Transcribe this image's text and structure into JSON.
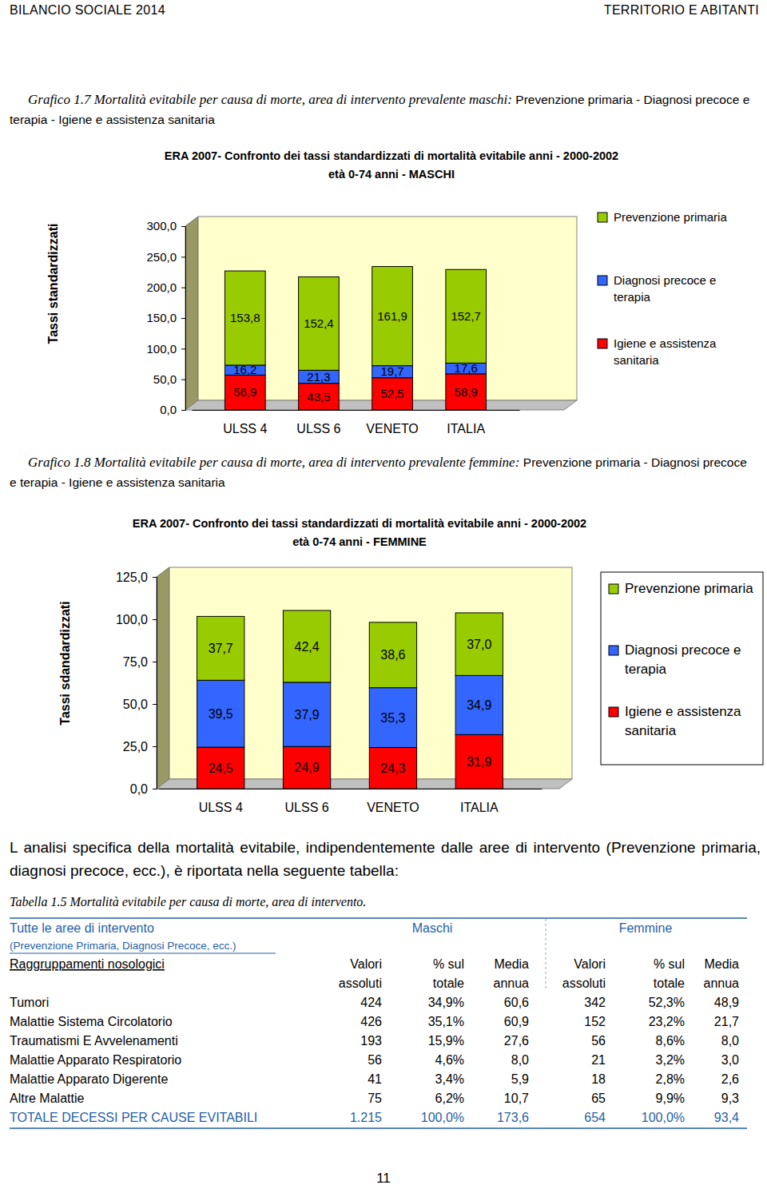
{
  "header": {
    "left": "BILANCIO SOCIALE 2014",
    "right": "TERRITORIO E ABITANTI"
  },
  "captions": [
    {
      "label": "Grafico 1.7 Mortalità evitabile per causa di morte, area di intervento prevalente maschi:",
      "detail": "Prevenzione primaria - Diagnosi precoce e terapia - Igiene e assistenza sanitaria"
    },
    {
      "label": "Grafico 1.8 Mortalità evitabile per causa di morte, area di intervento prevalente femmine:",
      "detail": "Prevenzione primaria - Diagnosi precoce e terapia - Igiene e assistenza sanitaria"
    }
  ],
  "chart_data": [
    {
      "type": "bar",
      "stacked": true,
      "data_labels": true,
      "grid": false,
      "legend": "right",
      "title": "ERA 2007- Confronto dei tassi standardizzati di mortalità evitabile anni - 2000-2002",
      "subtitle": "età 0-74 anni - MASCHI",
      "y_label": "Tassi standardizzati",
      "categories": [
        "ULSS 4",
        "ULSS 6",
        "VENETO",
        "ITALIA"
      ],
      "ylim": [
        0,
        300
      ],
      "yticks": [
        {
          "value": 0,
          "label": "0,0"
        },
        {
          "value": 50,
          "label": "50,0"
        },
        {
          "value": 100,
          "label": "100,0"
        },
        {
          "value": 150,
          "label": "150,0"
        },
        {
          "value": 200,
          "label": "200,0"
        },
        {
          "value": 250,
          "label": "250,0"
        },
        {
          "value": 300,
          "label": "300,0"
        }
      ],
      "series": [
        {
          "name": "Prevenzione primaria",
          "color": "#99CC00",
          "values": [
            153.8,
            152.4,
            161.9,
            152.7
          ],
          "value_labels": [
            "153,8",
            "152,4",
            "161,9",
            "152,7"
          ]
        },
        {
          "name": "Diagnosi precoce e terapia",
          "color": "#3366FF",
          "values": [
            16.2,
            21.3,
            19.7,
            17.6
          ],
          "value_labels": [
            "16,2",
            "21,3",
            "19,7",
            "17,6"
          ]
        },
        {
          "name": "Igiene e assistenza sanitaria",
          "color": "#FF0000",
          "values": [
            56.9,
            43.5,
            52.5,
            58.9
          ],
          "value_labels": [
            "56,9",
            "43,5",
            "52,5",
            "58,9"
          ]
        }
      ]
    },
    {
      "type": "bar",
      "stacked": true,
      "data_labels": true,
      "grid": false,
      "legend": "right",
      "title": "ERA 2007- Confronto dei tassi standardizzati di mortalità evitabile anni - 2000-2002",
      "subtitle": "età 0-74 anni - FEMMINE",
      "y_label": "Tassi sdandardizzati",
      "categories": [
        "ULSS 4",
        "ULSS 6",
        "VENETO",
        "ITALIA"
      ],
      "ylim": [
        0,
        125
      ],
      "yticks": [
        {
          "value": 0,
          "label": "0,0"
        },
        {
          "value": 25,
          "label": "25,0"
        },
        {
          "value": 50,
          "label": "50,0"
        },
        {
          "value": 75,
          "label": "75,0"
        },
        {
          "value": 100,
          "label": "100,0"
        },
        {
          "value": 125,
          "label": "125,0"
        }
      ],
      "series": [
        {
          "name": "Prevenzione primaria",
          "color": "#99CC00",
          "values": [
            37.7,
            42.4,
            38.6,
            37.0
          ],
          "value_labels": [
            "37,7",
            "42,4",
            "38,6",
            "37,0"
          ]
        },
        {
          "name": "Diagnosi precoce e terapia",
          "color": "#3366FF",
          "values": [
            39.5,
            37.9,
            35.3,
            34.9
          ],
          "value_labels": [
            "39,5",
            "37,9",
            "35,3",
            "34,9"
          ]
        },
        {
          "name": "Igiene e assistenza sanitaria",
          "color": "#FF0000",
          "values": [
            24.5,
            24.9,
            24.3,
            31.9
          ],
          "value_labels": [
            "24,5",
            "24,9",
            "24,3",
            "31,9"
          ]
        }
      ]
    }
  ],
  "paragraph": "L analisi specifica della mortalità evitabile, indipendentemente dalle aree di intervento (Prevenzione primaria, diagnosi precoce, ecc.), è riportata nella seguente tabella:",
  "table": {
    "caption": "Tabella 1.5 Mortalità evitabile per causa di morte, area di intervento.",
    "group_header": "Tutte le aree di intervento",
    "group_note": "(Prevenzione Primaria, Diagnosi Precoce, ecc.)",
    "sexes": [
      "Maschi",
      "Femmine"
    ],
    "columns": [
      "Raggruppamenti nosologici",
      "Valori assoluti",
      "% sul totale",
      "Media annua",
      "Valori assoluti",
      "% sul totale",
      "Media annua"
    ],
    "rows": [
      [
        "Tumori",
        "424",
        "34,9%",
        "60,6",
        "342",
        "52,3%",
        "48,9"
      ],
      [
        "Malattie Sistema Circolatorio",
        "426",
        "35,1%",
        "60,9",
        "152",
        "23,2%",
        "21,7"
      ],
      [
        "Traumatismi E Avvelenamenti",
        "193",
        "15,9%",
        "27,6",
        "56",
        "8,6%",
        "8,0"
      ],
      [
        "Malattie Apparato Respiratorio",
        "56",
        "4,6%",
        "8,0",
        "21",
        "3,2%",
        "3,0"
      ],
      [
        "Malattie Apparato Digerente",
        "41",
        "3,4%",
        "5,9",
        "18",
        "2,8%",
        "2,6"
      ],
      [
        "Altre Malattie",
        "75",
        "6,2%",
        "10,7",
        "65",
        "9,9%",
        "9,3"
      ]
    ],
    "total": [
      "TOTALE DECESSI PER CAUSE EVITABILI",
      "1.215",
      "100,0%",
      "173,6",
      "654",
      "100,0%",
      "93,4"
    ]
  },
  "page_number": "11"
}
